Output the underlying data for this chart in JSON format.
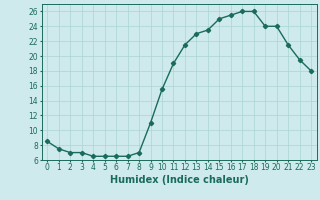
{
  "x": [
    0,
    1,
    2,
    3,
    4,
    5,
    6,
    7,
    8,
    9,
    10,
    11,
    12,
    13,
    14,
    15,
    16,
    17,
    18,
    19,
    20,
    21,
    22,
    23
  ],
  "y": [
    8.5,
    7.5,
    7.0,
    7.0,
    6.5,
    6.5,
    6.5,
    6.5,
    7.0,
    11.0,
    15.5,
    19.0,
    21.5,
    23.0,
    23.5,
    25.0,
    25.5,
    26.0,
    26.0,
    24.0,
    24.0,
    21.5,
    19.5,
    18.0
  ],
  "line_color": "#1a6b5a",
  "marker": "D",
  "marker_size": 2.2,
  "line_width": 1.0,
  "xlabel": "Humidex (Indice chaleur)",
  "xlim": [
    -0.5,
    23.5
  ],
  "ylim": [
    6,
    27
  ],
  "yticks": [
    6,
    8,
    10,
    12,
    14,
    16,
    18,
    20,
    22,
    24,
    26
  ],
  "xticks": [
    0,
    1,
    2,
    3,
    4,
    5,
    6,
    7,
    8,
    9,
    10,
    11,
    12,
    13,
    14,
    15,
    16,
    17,
    18,
    19,
    20,
    21,
    22,
    23
  ],
  "bg_color": "#ceeaec",
  "grid_color": "#aad4d6",
  "tick_label_fontsize": 5.5,
  "xlabel_fontsize": 7.0
}
